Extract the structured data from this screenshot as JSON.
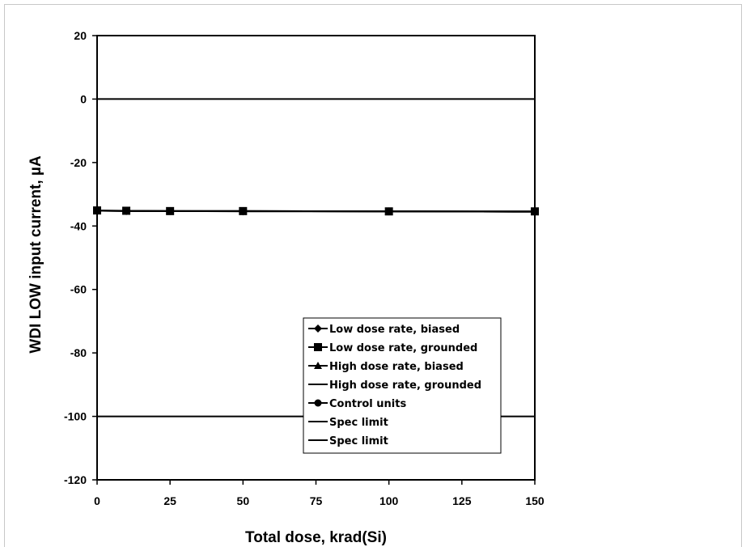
{
  "chart_data": {
    "type": "line",
    "title": "",
    "xlabel": "Total dose, krad(Si)",
    "ylabel": "WDI LOW input current, µA",
    "xlim": [
      0,
      150
    ],
    "ylim": [
      -120,
      20
    ],
    "xticks": [
      0,
      25,
      50,
      75,
      100,
      125,
      150
    ],
    "yticks": [
      20,
      0,
      -20,
      -40,
      -60,
      -80,
      -100,
      -120
    ],
    "grid": false,
    "legend_position": "lower-right",
    "series": [
      {
        "name": "Low dose rate, biased",
        "marker": "diamond",
        "x": [
          0,
          10,
          25,
          50,
          100,
          150
        ],
        "y": [
          -35.2,
          -35.3,
          -35.3,
          -35.4,
          -35.4,
          -35.5
        ]
      },
      {
        "name": "Low dose rate, grounded",
        "marker": "square",
        "x": [
          0,
          10,
          25,
          50,
          100,
          150
        ],
        "y": [
          -35.1,
          -35.2,
          -35.3,
          -35.3,
          -35.4,
          -35.4
        ]
      },
      {
        "name": "High dose rate, biased",
        "marker": "triangle",
        "x": [
          0,
          10,
          25,
          50,
          100,
          150
        ],
        "y": [
          -35.2,
          -35.2,
          -35.3,
          -35.3,
          -35.4,
          -35.5
        ]
      },
      {
        "name": "High dose rate, grounded",
        "marker": "none",
        "x": [
          0,
          10,
          25,
          50,
          100,
          150
        ],
        "y": [
          -35.2,
          -35.3,
          -35.3,
          -35.3,
          -35.4,
          -35.5
        ]
      },
      {
        "name": "Control units",
        "marker": "circle",
        "x": [
          0,
          10,
          25,
          50,
          100,
          150
        ],
        "y": [
          -35.2,
          -35.2,
          -35.3,
          -35.3,
          -35.4,
          -35.4
        ]
      },
      {
        "name": "Spec limit",
        "marker": "none",
        "x": [
          0,
          150
        ],
        "y": [
          0,
          0
        ]
      },
      {
        "name": "Spec limit",
        "marker": "none",
        "x": [
          0,
          150
        ],
        "y": [
          -100,
          -100
        ]
      }
    ]
  }
}
